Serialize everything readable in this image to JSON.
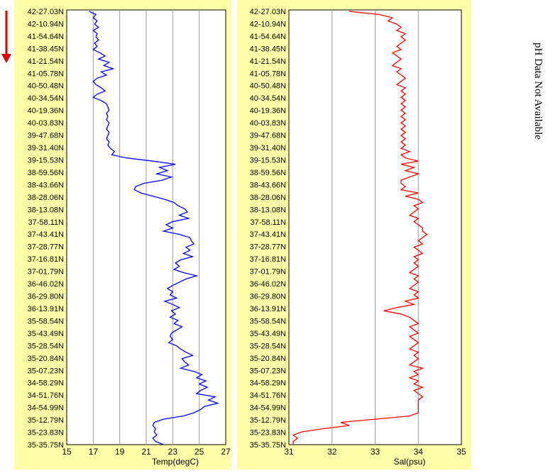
{
  "colors": {
    "panel_background": "#ffffa8",
    "temp_line": "#0000ff",
    "sal_line": "#ff0000",
    "arrow": "#dd0000"
  },
  "side_note": "pH Data Not Available",
  "direction_icon": "down-arrow-icon",
  "chart_data": [
    {
      "type": "line",
      "xlabel": "Temp(degC)",
      "xlim": [
        15,
        27
      ],
      "xticks": [
        15,
        17,
        19,
        21,
        23,
        25,
        27
      ],
      "grid": true,
      "color": "#0000ff",
      "latitude_labels": [
        "42-27.03N",
        "42-10.94N",
        "41-54.64N",
        "41-38.45N",
        "41-21.54N",
        "41-05.78N",
        "40-50.48N",
        "40-34.54N",
        "40-19.36N",
        "40-03.83N",
        "39-47.68N",
        "39-31.40N",
        "39-15.53N",
        "38-59.56N",
        "38-43.66N",
        "38-28.06N",
        "38-13.08N",
        "37-58.11N",
        "37-43.41N",
        "37-28.77N",
        "37-16.81N",
        "37-01.79N",
        "36-46.02N",
        "36-29.80N",
        "36-13.91N",
        "35-58.54N",
        "35-43.49N",
        "35-28.54N",
        "35-20.84N",
        "35-07.23N",
        "34-58.29N",
        "34-51.76N",
        "34-54.99N",
        "35-12.79N",
        "35-23.83N",
        "35-35.75N"
      ],
      "series": [
        {
          "x": [
            16.7,
            17.2,
            17.0,
            17.3,
            17.1,
            17.4,
            17.0,
            17.3,
            17.2,
            17.4,
            17.1,
            17.3,
            17.0,
            17.5,
            17.9,
            17.4,
            18.2,
            17.8,
            18.5,
            17.6,
            18.0,
            17.3,
            17.0,
            17.2,
            17.6,
            17.9,
            17.3,
            17.0,
            17.6,
            18.0,
            18.1,
            18.2,
            18.0,
            18.1,
            18.0,
            18.2,
            18.1,
            18.0,
            18.2,
            18.1,
            18.0,
            18.2,
            18.1,
            18.3,
            18.6,
            18.4,
            19.5,
            21.5,
            23.2,
            22.0,
            22.6,
            21.8,
            22.9,
            22.2,
            20.8,
            20.2,
            20.1,
            20.6,
            21.5,
            22.4,
            23.1,
            23.4,
            23.9,
            24.1,
            23.5,
            24.2,
            23.0,
            22.5,
            23.0,
            22.3,
            23.5,
            24.3,
            24.4,
            24.6,
            24.0,
            24.3,
            23.8,
            24.5,
            23.6,
            23.2,
            23.5,
            23.1,
            23.8,
            24.8,
            24.0,
            23.5,
            23.0,
            22.6,
            23.0,
            22.8,
            23.3,
            22.4,
            23.0,
            23.5,
            22.9,
            23.2,
            22.8,
            23.4,
            23.1,
            23.7,
            23.3,
            22.9,
            22.8,
            23.0,
            22.7,
            23.3,
            23.6,
            24.0,
            24.5,
            23.7,
            23.9,
            24.2,
            23.6,
            24.6,
            25.2,
            24.8,
            25.5,
            25.0,
            25.6,
            25.1,
            24.8,
            26.2,
            25.7,
            26.4,
            25.4,
            25.1,
            24.6,
            23.8,
            22.3,
            21.6,
            21.5,
            21.7,
            21.6,
            21.8,
            21.5,
            21.7,
            22.3
          ]
        }
      ]
    },
    {
      "type": "line",
      "xlabel": "Sal(psu)",
      "xlim": [
        31,
        35
      ],
      "xticks": [
        31,
        32,
        33,
        34,
        35
      ],
      "grid": true,
      "color": "#ff0000",
      "latitude_labels": [
        "42-27.03N",
        "42-10.94N",
        "41-54.64N",
        "41-38.45N",
        "41-21.54N",
        "41-05.78N",
        "40-50.48N",
        "40-34.54N",
        "40-19.36N",
        "40-03.83N",
        "39-47.68N",
        "39-31.40N",
        "39-15.53N",
        "38-59.56N",
        "38-43.66N",
        "38-28.06N",
        "38-13.08N",
        "37-58.11N",
        "37-43.41N",
        "37-28.77N",
        "37-16.81N",
        "37-01.79N",
        "36-46.02N",
        "36-29.80N",
        "36-13.91N",
        "35-58.54N",
        "35-43.49N",
        "35-28.54N",
        "35-20.84N",
        "35-07.23N",
        "34-58.29N",
        "34-51.76N",
        "34-54.99N",
        "35-12.79N",
        "35-23.83N",
        "35-35.75N"
      ],
      "series": [
        {
          "x": [
            32.4,
            33.1,
            33.4,
            33.3,
            33.5,
            33.6,
            33.5,
            33.7,
            33.6,
            33.7,
            33.6,
            33.5,
            33.6,
            33.4,
            33.5,
            33.6,
            33.5,
            33.4,
            33.6,
            33.5,
            33.6,
            33.7,
            33.6,
            33.5,
            33.7,
            33.6,
            33.7,
            33.6,
            33.7,
            33.6,
            33.7,
            33.6,
            33.7,
            33.6,
            33.7,
            33.6,
            33.7,
            33.6,
            33.7,
            33.6,
            33.7,
            33.6,
            33.7,
            33.6,
            33.8,
            33.6,
            33.7,
            34.0,
            33.6,
            33.9,
            33.7,
            34.0,
            33.8,
            33.6,
            33.6,
            33.7,
            33.6,
            34.0,
            33.7,
            34.0,
            34.1,
            33.9,
            34.0,
            33.9,
            33.8,
            34.0,
            33.9,
            34.0,
            34.1,
            34.1,
            34.2,
            34.1,
            34.0,
            34.1,
            33.9,
            34.0,
            34.1,
            33.9,
            34.0,
            33.9,
            34.0,
            33.9,
            33.8,
            34.0,
            33.9,
            34.0,
            33.9,
            33.8,
            34.0,
            33.9,
            34.0,
            33.7,
            33.9,
            33.5,
            33.2,
            33.6,
            33.8,
            33.9,
            34.0,
            33.8,
            33.9,
            34.0,
            33.8,
            33.9,
            34.0,
            33.9,
            33.8,
            34.0,
            33.9,
            34.0,
            33.9,
            33.8,
            34.1,
            33.9,
            34.0,
            33.8,
            34.0,
            33.9,
            34.1,
            33.9,
            34.0,
            34.1,
            34.0,
            34.0,
            34.0,
            34.0,
            34.0,
            33.8,
            33.0,
            32.2,
            32.4,
            31.8,
            31.3,
            31.1,
            31.2,
            31.1,
            31.1
          ]
        }
      ]
    }
  ]
}
